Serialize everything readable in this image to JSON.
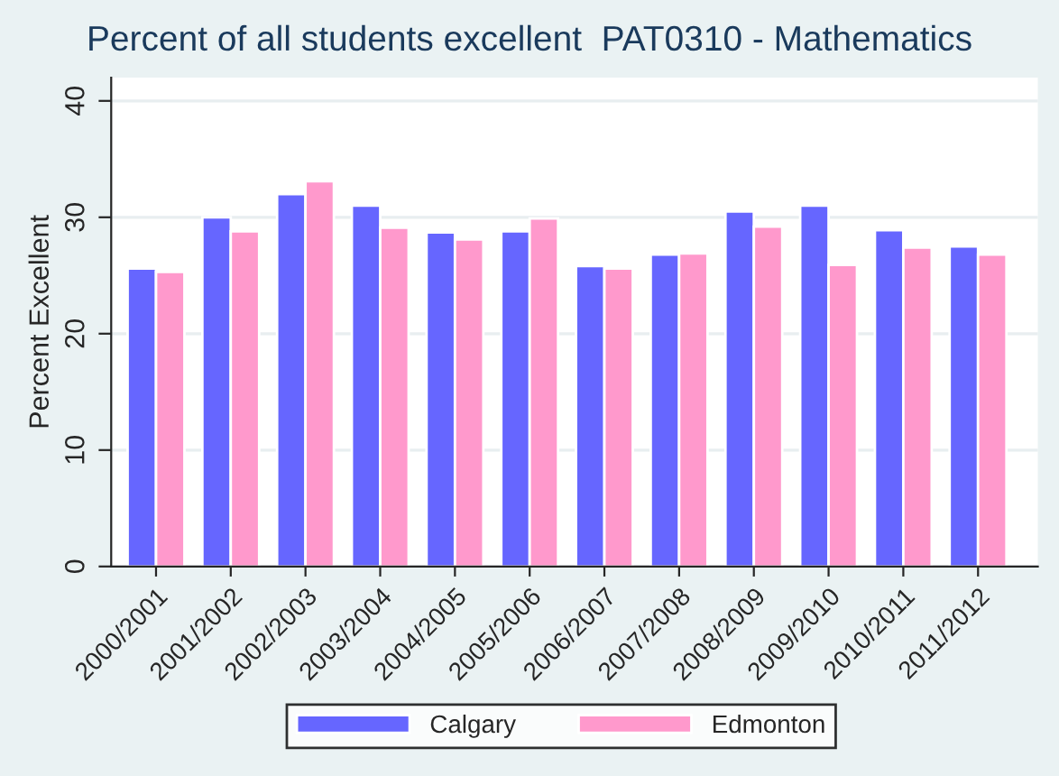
{
  "chart_data": {
    "type": "bar",
    "title": "Percent of all students excellent  PAT0310 - Mathematics",
    "ylabel": "Percent Excellent",
    "categories": [
      "2000/2001",
      "2001/2002",
      "2002/2003",
      "2003/2004",
      "2004/2005",
      "2005/2006",
      "2006/2007",
      "2007/2008",
      "2008/2009",
      "2009/2010",
      "2010/2011",
      "2011/2012"
    ],
    "series": [
      {
        "name": "Calgary",
        "color": "#6666ff",
        "values": [
          25.6,
          30.0,
          32.0,
          31.0,
          28.7,
          28.8,
          25.8,
          26.8,
          30.5,
          31.0,
          28.9,
          27.5
        ]
      },
      {
        "name": "Edmonton",
        "color": "#ff99cc",
        "values": [
          25.3,
          28.8,
          33.1,
          29.1,
          28.1,
          29.9,
          25.6,
          26.9,
          29.2,
          25.9,
          27.4,
          26.8
        ]
      }
    ],
    "ylim": [
      0,
      42
    ],
    "yticks": [
      0,
      10,
      20,
      30,
      40
    ],
    "grid": "y",
    "legend": "bottom"
  }
}
